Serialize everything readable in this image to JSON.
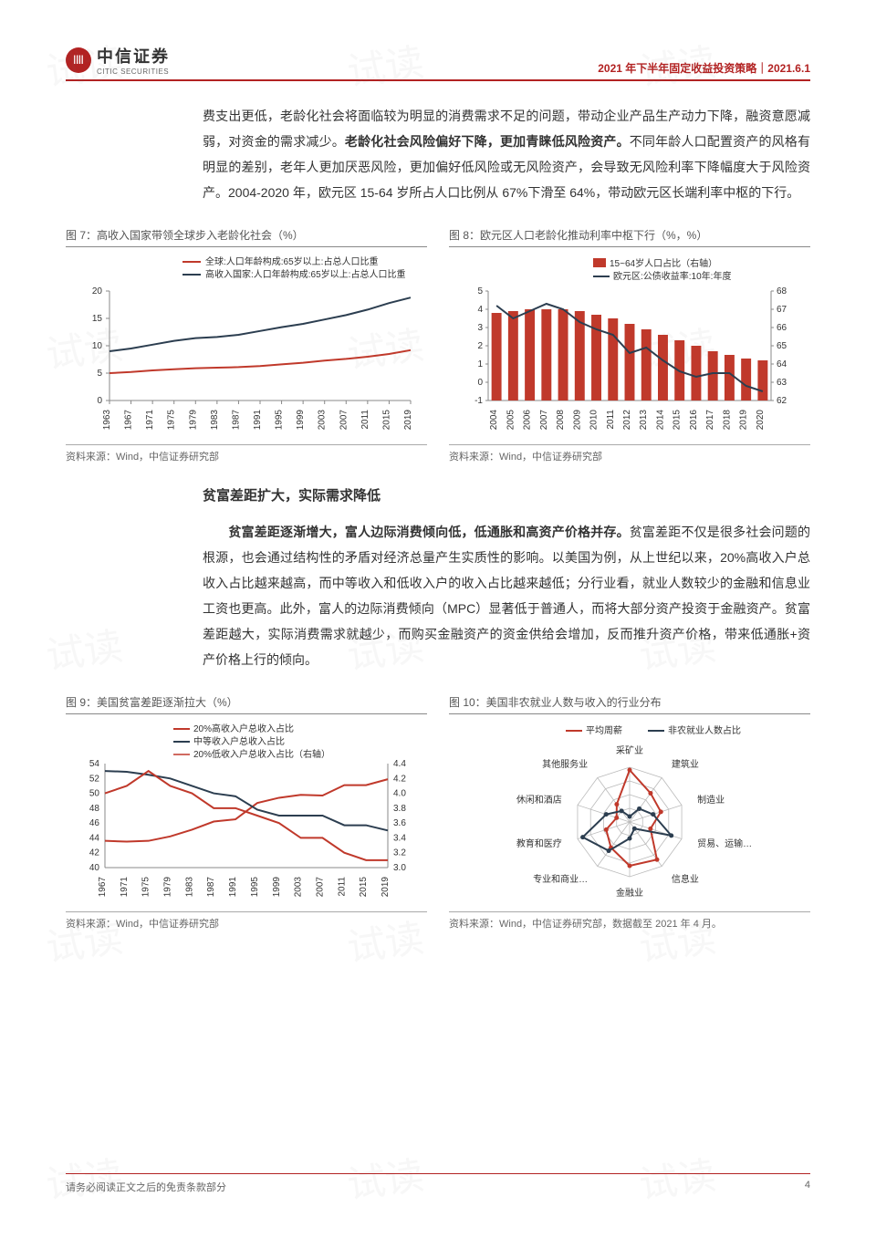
{
  "header": {
    "logo_cn": "中信证券",
    "logo_en": "CITIC SECURITIES",
    "title_right": "2021 年下半年固定收益投资策略",
    "date": "2021.6.1"
  },
  "para1": {
    "t1": "费支出更低，老龄化社会将面临较为明显的消费需求不足的问题，带动企业产品生产动力下降，融资意愿减弱，对资金的需求减少。",
    "b1": "老龄化社会风险偏好下降，更加青睐低风险资产。",
    "t2": "不同年龄人口配置资产的风格有明显的差别，老年人更加厌恶风险，更加偏好低风险或无风险资产，会导致无风险利率下降幅度大于风险资产。2004-2020 年，欧元区 15-64 岁所占人口比例从 67%下滑至 64%，带动欧元区长端利率中枢的下行。"
  },
  "chart7": {
    "title": "图 7：高收入国家带领全球步入老龄化社会（%）",
    "legend1": "全球:人口年龄构成:65岁以上:占总人口比重",
    "legend2": "高收入国家:人口年龄构成:65岁以上:占总人口比重",
    "color1": "#c0392b",
    "color2": "#2c3e50",
    "x_ticks": [
      "1963",
      "1967",
      "1971",
      "1975",
      "1979",
      "1983",
      "1987",
      "1991",
      "1995",
      "1999",
      "2003",
      "2007",
      "2011",
      "2015",
      "2019"
    ],
    "y_ticks": [
      0,
      5,
      10,
      15,
      20
    ],
    "series1": [
      5.0,
      5.2,
      5.5,
      5.7,
      5.9,
      6.0,
      6.1,
      6.3,
      6.6,
      6.9,
      7.3,
      7.6,
      8.0,
      8.5,
      9.2
    ],
    "series2": [
      9.0,
      9.5,
      10.2,
      10.9,
      11.4,
      11.6,
      12.0,
      12.7,
      13.4,
      14.0,
      14.8,
      15.6,
      16.6,
      17.8,
      18.8
    ],
    "ylim": [
      0,
      20
    ],
    "source": "资料来源：Wind，中信证券研究部"
  },
  "chart8": {
    "title": "图 8：欧元区人口老龄化推动利率中枢下行（%，%）",
    "legend1": "15~64岁人口占比（右轴）",
    "legend2": "欧元区:公债收益率:10年:年度",
    "bar_color": "#c0392b",
    "line_color": "#2c3e50",
    "x_ticks": [
      "2004",
      "2005",
      "2006",
      "2007",
      "2008",
      "2009",
      "2010",
      "2011",
      "2012",
      "2013",
      "2014",
      "2015",
      "2016",
      "2017",
      "2018",
      "2019",
      "2020"
    ],
    "y_left_ticks": [
      -1,
      0,
      1,
      2,
      3,
      4,
      5
    ],
    "y_right_ticks": [
      62,
      63,
      64,
      65,
      66,
      67,
      68
    ],
    "bars": [
      66.8,
      66.9,
      67.0,
      67.0,
      67.0,
      66.9,
      66.7,
      66.5,
      66.2,
      65.9,
      65.6,
      65.3,
      65.0,
      64.7,
      64.5,
      64.3,
      64.2
    ],
    "line": [
      4.2,
      3.5,
      3.9,
      4.3,
      4.0,
      3.3,
      2.9,
      2.6,
      1.6,
      1.9,
      1.2,
      0.6,
      0.3,
      0.5,
      0.5,
      -0.2,
      -0.5
    ],
    "y_left_lim": [
      -1,
      5
    ],
    "y_right_lim": [
      62,
      68
    ],
    "source": "资料来源：Wind，中信证券研究部"
  },
  "section2_title": "贫富差距扩大，实际需求降低",
  "para2": {
    "b1": "贫富差距逐渐增大，富人边际消费倾向低，低通胀和高资产价格并存。",
    "t1": "贫富差距不仅是很多社会问题的根源，也会通过结构性的矛盾对经济总量产生实质性的影响。以美国为例，从上世纪以来，20%高收入户总收入占比越来越高，而中等收入和低收入户的收入占比越来越低；分行业看，就业人数较少的金融和信息业工资也更高。此外，富人的边际消费倾向（MPC）显著低于普通人，而将大部分资产投资于金融资产。贫富差距越大，实际消费需求就越少，而购买金融资产的资金供给会增加，反而推升资产价格，带来低通胀+资产价格上行的倾向。"
  },
  "chart9": {
    "title": "图 9：美国贫富差距逐渐拉大（%）",
    "legend1": "20%高收入户总收入占比",
    "legend2": "中等收入户总收入占比",
    "legend3": "20%低收入户总收入占比（右轴）",
    "color1": "#c0392b",
    "color2": "#2c3e50",
    "color3": "#c0392b",
    "x_ticks": [
      "1967",
      "1971",
      "1975",
      "1979",
      "1983",
      "1987",
      "1991",
      "1995",
      "1999",
      "2003",
      "2007",
      "2011",
      "2015",
      "2019"
    ],
    "y_left_ticks": [
      40,
      42,
      44,
      46,
      48,
      50,
      52,
      54
    ],
    "y_right_ticks": [
      "3.0",
      "3.2",
      "3.4",
      "3.6",
      "3.8",
      "4.0",
      "4.2",
      "4.4"
    ],
    "series1": [
      43.6,
      43.5,
      43.6,
      44.2,
      45.1,
      46.2,
      46.5,
      48.7,
      49.4,
      49.8,
      49.7,
      51.1,
      51.1,
      51.9
    ],
    "series2": [
      53.0,
      52.9,
      52.5,
      52.0,
      51.0,
      50.0,
      49.6,
      47.8,
      47.0,
      47.0,
      47.0,
      45.7,
      45.7,
      45.0
    ],
    "series3": [
      4.0,
      4.1,
      4.3,
      4.1,
      4.0,
      3.8,
      3.8,
      3.7,
      3.6,
      3.4,
      3.4,
      3.2,
      3.1,
      3.1
    ],
    "y_left_lim": [
      40,
      54
    ],
    "y_right_lim": [
      3.0,
      4.4
    ],
    "source": "资料来源：Wind，中信证券研究部"
  },
  "chart10": {
    "title": "图 10：美国非农就业人数与收入的行业分布",
    "legend1": "平均周薪",
    "legend2": "非农就业人数占比",
    "color1": "#c0392b",
    "color2": "#2c3e50",
    "axes": [
      "采矿业",
      "建筑业",
      "制造业",
      "贸易、运输…",
      "信息业",
      "金融业",
      "专业和商业…",
      "教育和医疗",
      "休闲和酒店",
      "其他服务业"
    ],
    "series1": [
      0.95,
      0.65,
      0.6,
      0.4,
      0.85,
      0.8,
      0.58,
      0.45,
      0.25,
      0.4
    ],
    "series2": [
      0.1,
      0.3,
      0.45,
      0.8,
      0.15,
      0.3,
      0.65,
      0.9,
      0.45,
      0.25
    ],
    "source": "资料来源：Wind，中信证券研究部，数据截至 2021 年 4 月。"
  },
  "footer": {
    "text": "请务必阅读正文之后的免责条款部分",
    "page": "4"
  },
  "watermark_text": "试读"
}
